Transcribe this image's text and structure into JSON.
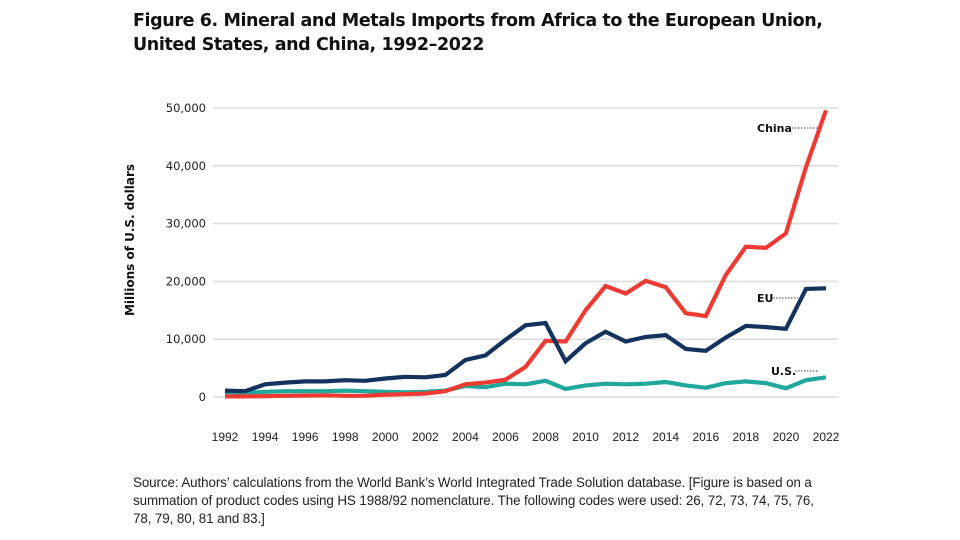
{
  "chart_data": {
    "type": "line",
    "title": "Figure 6. Mineral and Metals Imports from Africa to the European Union, United States, and China, 1992–2022",
    "xlabel": "",
    "ylabel": "Millions of U.S. dollars",
    "x": [
      1992,
      1993,
      1994,
      1995,
      1996,
      1997,
      1998,
      1999,
      2000,
      2001,
      2002,
      2003,
      2004,
      2005,
      2006,
      2007,
      2008,
      2009,
      2010,
      2011,
      2012,
      2013,
      2014,
      2015,
      2016,
      2017,
      2018,
      2019,
      2020,
      2021,
      2022
    ],
    "xticks": [
      "1992",
      "1994",
      "1996",
      "1998",
      "2000",
      "2002",
      "2004",
      "2006",
      "2008",
      "2010",
      "2012",
      "2014",
      "2016",
      "2018",
      "2020",
      "2022"
    ],
    "yticks": [
      0,
      10000,
      20000,
      30000,
      40000,
      50000
    ],
    "ytick_labels": [
      "0",
      "10,000",
      "20,000",
      "30,000",
      "40,000",
      "50,000"
    ],
    "xlim": [
      1992,
      2022
    ],
    "ylim": [
      0,
      50000
    ],
    "grid": "horizontal",
    "legend": "inline labels at right end of lines",
    "series": [
      {
        "name": "China",
        "color": "#ee3a33",
        "values": [
          100,
          100,
          150,
          200,
          250,
          300,
          200,
          200,
          400,
          500,
          600,
          1000,
          2200,
          2500,
          3000,
          5200,
          9700,
          9600,
          15000,
          19200,
          17900,
          20100,
          19000,
          14500,
          14000,
          21100,
          26000,
          25800,
          28300,
          39800,
          49600
        ]
      },
      {
        "name": "EU",
        "color": "#13325e",
        "values": [
          1100,
          1000,
          2200,
          2500,
          2700,
          2700,
          2900,
          2800,
          3200,
          3500,
          3400,
          3800,
          6400,
          7200,
          9900,
          12400,
          12800,
          6200,
          9300,
          11300,
          9600,
          10400,
          10700,
          8300,
          8000,
          10300,
          12300,
          12100,
          11800,
          18700,
          18800
        ]
      },
      {
        "name": "U.S.",
        "color": "#1fa89b",
        "values": [
          700,
          700,
          900,
          1000,
          1000,
          1000,
          1100,
          1000,
          900,
          800,
          900,
          1100,
          1900,
          1700,
          2300,
          2200,
          2800,
          1400,
          2000,
          2300,
          2200,
          2300,
          2600,
          2000,
          1600,
          2400,
          2700,
          2400,
          1500,
          2900,
          3400
        ]
      }
    ],
    "source": "Source: Authors’ calculations from the World Bank’s World Integrated Trade Solution database. [Figure is based on a summation of product codes using HS 1988/92 nomenclature. The following codes were used: 26, 72, 73, 74, 75, 76, 78, 79, 80, 81 and 83.]"
  }
}
